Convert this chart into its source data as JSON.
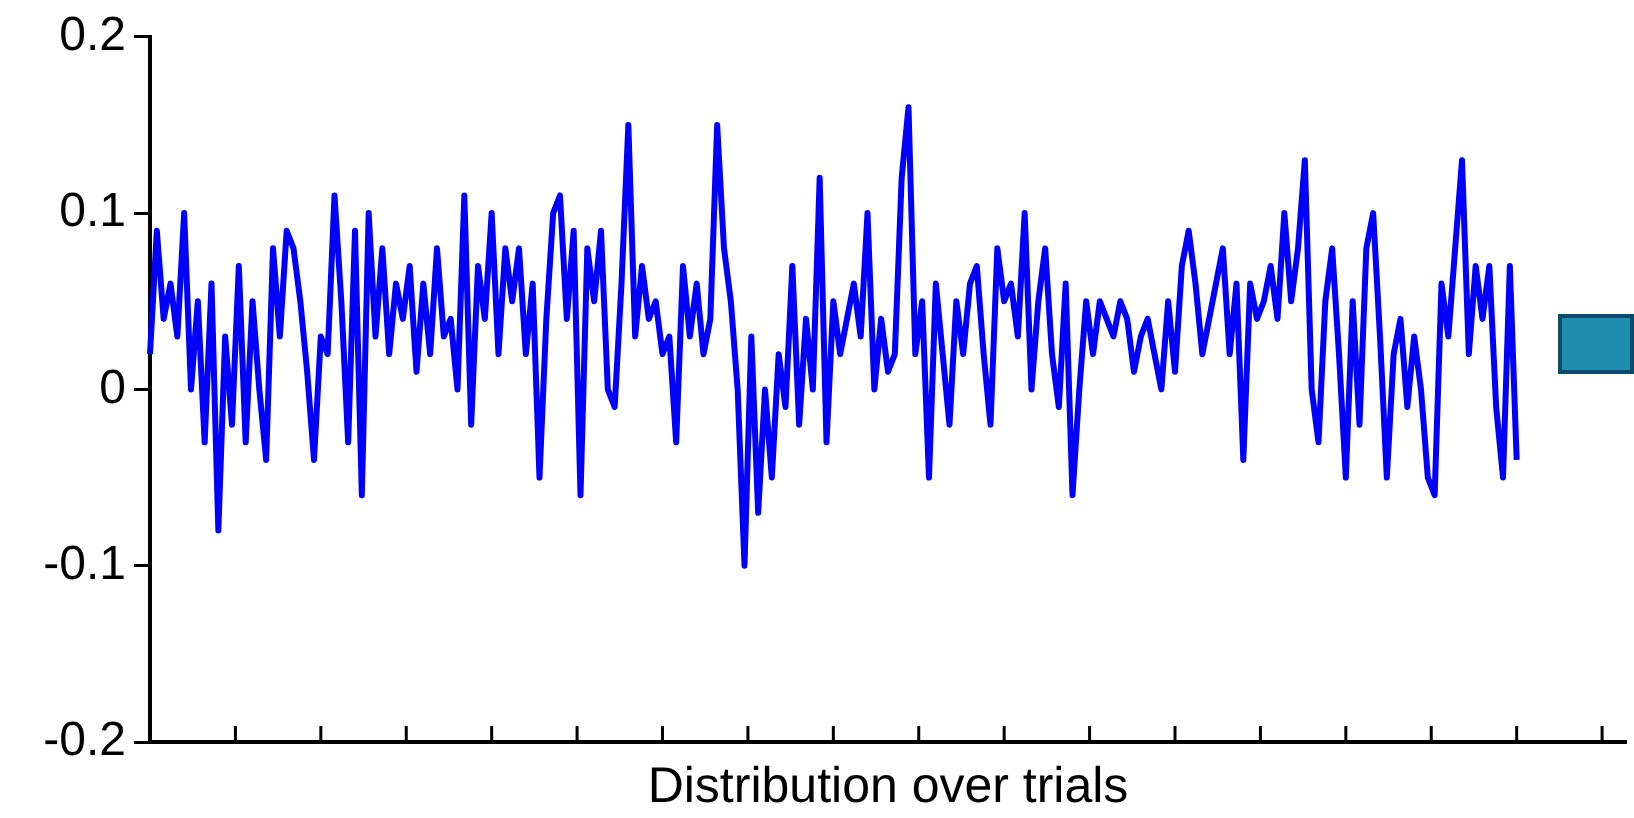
{
  "chart_data": {
    "type": "line",
    "xlabel": "Distribution over trials",
    "categories": [
      null,
      null,
      null,
      null,
      null,
      null,
      null,
      null,
      null,
      null,
      null,
      null,
      null,
      null,
      null,
      null,
      null,
      null,
      null,
      null,
      null,
      null,
      null,
      null,
      null,
      null,
      null,
      null,
      null,
      null,
      null,
      null,
      null,
      null,
      null,
      null,
      null,
      null,
      null,
      null,
      null,
      null,
      null,
      null,
      null,
      null,
      null,
      null,
      null,
      null,
      null,
      null,
      null,
      null,
      null,
      null,
      null,
      null,
      null,
      null,
      null,
      null,
      null,
      null,
      null,
      null,
      null,
      null,
      null,
      null,
      null,
      null,
      null,
      null,
      null,
      null,
      null,
      null,
      null,
      null,
      null,
      null,
      null,
      null,
      null,
      null,
      null,
      null,
      null,
      null,
      null,
      null,
      null,
      null,
      null,
      null,
      null,
      null,
      null,
      null,
      null,
      null,
      null,
      null,
      null,
      null,
      null,
      null,
      null,
      null,
      null,
      null,
      null,
      null,
      null,
      null,
      null,
      null,
      null,
      null,
      null,
      null,
      null,
      null,
      null,
      null,
      null,
      null,
      null,
      null,
      null,
      null,
      null,
      null,
      null,
      null,
      null,
      null,
      null,
      null,
      null,
      null,
      null,
      null,
      null,
      null,
      null,
      null,
      null,
      null,
      null,
      null,
      null,
      null,
      null,
      null,
      null,
      null,
      null,
      null,
      null,
      null,
      null,
      null,
      null,
      null,
      null,
      null,
      null,
      null,
      null,
      null,
      null,
      null,
      null,
      null,
      null,
      null,
      null,
      null,
      null,
      null,
      null,
      null,
      null,
      null,
      null,
      null,
      null,
      null,
      null,
      null,
      null,
      null,
      null,
      null,
      null,
      null,
      null,
      null,
      null,
      null,
      null,
      null,
      null,
      null,
      null,
      null,
      null,
      null,
      null,
      null,
      null,
      null,
      null,
      null,
      null
    ],
    "values": [
      0.02,
      0.09,
      0.04,
      0.06,
      0.03,
      0.1,
      0.0,
      0.05,
      -0.03,
      0.06,
      -0.08,
      0.03,
      -0.02,
      0.07,
      -0.03,
      0.05,
      0.0,
      -0.04,
      0.08,
      0.03,
      0.09,
      0.08,
      0.05,
      0.01,
      -0.04,
      0.03,
      0.02,
      0.11,
      0.05,
      -0.03,
      0.09,
      -0.06,
      0.1,
      0.03,
      0.08,
      0.02,
      0.06,
      0.04,
      0.07,
      0.01,
      0.06,
      0.02,
      0.08,
      0.03,
      0.04,
      0.0,
      0.11,
      -0.02,
      0.07,
      0.04,
      0.1,
      0.02,
      0.08,
      0.05,
      0.08,
      0.02,
      0.06,
      -0.05,
      0.04,
      0.1,
      0.11,
      0.04,
      0.09,
      -0.06,
      0.08,
      0.05,
      0.09,
      0.0,
      -0.01,
      0.06,
      0.15,
      0.03,
      0.07,
      0.04,
      0.05,
      0.02,
      0.03,
      -0.03,
      0.07,
      0.03,
      0.06,
      0.02,
      0.04,
      0.15,
      0.08,
      0.05,
      0.0,
      -0.1,
      0.03,
      -0.07,
      0.0,
      -0.05,
      0.02,
      -0.01,
      0.07,
      -0.02,
      0.04,
      0.0,
      0.12,
      -0.03,
      0.05,
      0.02,
      0.04,
      0.06,
      0.03,
      0.1,
      0.0,
      0.04,
      0.01,
      0.02,
      0.12,
      0.16,
      0.02,
      0.05,
      -0.05,
      0.06,
      0.02,
      -0.02,
      0.05,
      0.02,
      0.06,
      0.07,
      0.02,
      -0.02,
      0.08,
      0.05,
      0.06,
      0.03,
      0.1,
      0.0,
      0.05,
      0.08,
      0.02,
      -0.01,
      0.06,
      -0.06,
      0.0,
      0.05,
      0.02,
      0.05,
      0.04,
      0.03,
      0.05,
      0.04,
      0.01,
      0.03,
      0.04,
      0.02,
      0.0,
      0.05,
      0.01,
      0.07,
      0.09,
      0.06,
      0.02,
      0.04,
      0.06,
      0.08,
      0.02,
      0.06,
      -0.04,
      0.06,
      0.04,
      0.05,
      0.07,
      0.04,
      0.1,
      0.05,
      0.08,
      0.13,
      0.0,
      -0.03,
      0.05,
      0.08,
      0.02,
      -0.05,
      0.05,
      -0.02,
      0.08,
      0.1,
      0.03,
      -0.05,
      0.02,
      0.04,
      -0.01,
      0.03,
      0.0,
      -0.05,
      -0.06,
      0.06,
      0.03,
      0.08,
      0.13,
      0.02,
      0.07,
      0.04,
      0.07,
      -0.01,
      -0.05,
      0.07,
      -0.04,
      null,
      null,
      null,
      null,
      null,
      null,
      null,
      null,
      null,
      null,
      null,
      null,
      null,
      null,
      null,
      null
    ],
    "color": "#0000ff",
    "ylim": [
      -0.2,
      0.2
    ],
    "yticks": [
      -0.2,
      -0.1,
      0,
      0.1,
      0.2
    ],
    "tick_labels": "y",
    "grid": false,
    "legend": false,
    "marker": "none",
    "line_style": "solid"
  }
}
